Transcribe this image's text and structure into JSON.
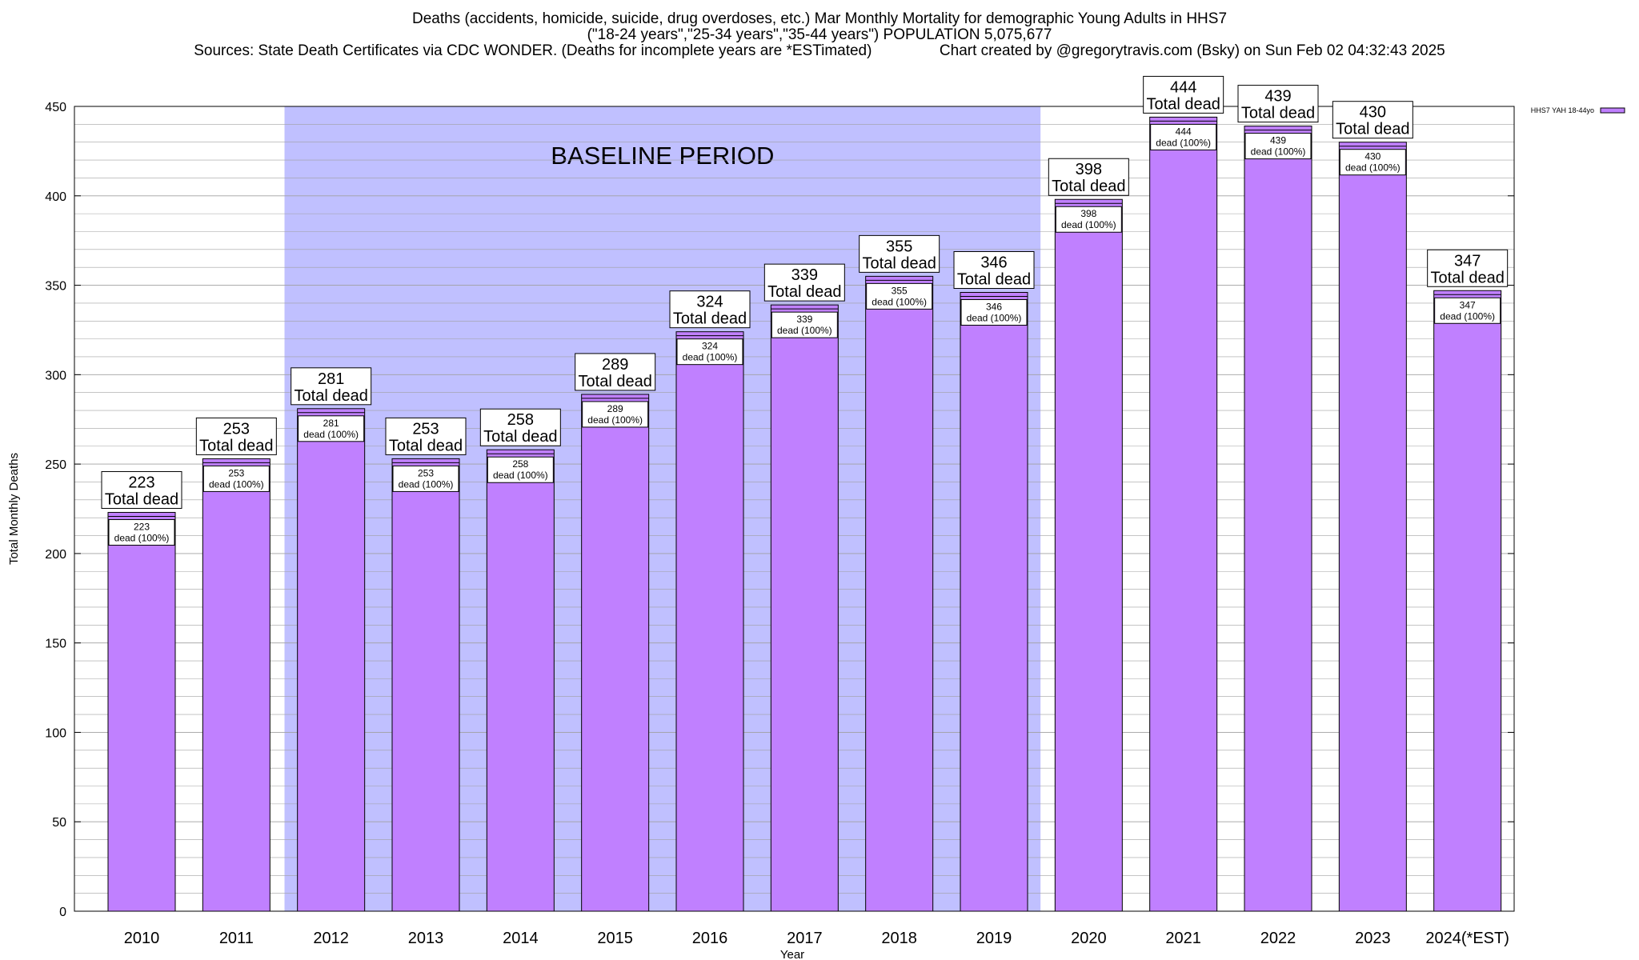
{
  "chart_data": {
    "type": "bar",
    "title_lines": [
      "Deaths (accidents, homicide, suicide, drug overdoses, etc.) Mar Monthly Mortality for demographic Young Adults in HHS7",
      "(\"18-24 years\",\"25-34 years\",\"35-44 years\") POPULATION 5,075,677",
      "Sources: State Death Certificates via CDC WONDER. (Deaths for incomplete years are *ESTimated)                Chart created by @gregorytravis.com (Bsky) on Sun Feb 02 04:32:43 2025"
    ],
    "xlabel": "Year",
    "ylabel": "Total Monthly Deaths",
    "ylim": [
      0,
      450
    ],
    "y_ticks": [
      0,
      50,
      100,
      150,
      200,
      250,
      300,
      350,
      400,
      450
    ],
    "grid": true,
    "legend": {
      "position": "top-right",
      "label": "HHS7 YAH 18-44yo"
    },
    "categories": [
      "2010",
      "2011",
      "2012",
      "2013",
      "2014",
      "2015",
      "2016",
      "2017",
      "2018",
      "2019",
      "2020",
      "2021",
      "2022",
      "2023",
      "2024(*EST)"
    ],
    "series": [
      {
        "name": "HHS7 YAH 18-44yo",
        "values": [
          223,
          253,
          281,
          253,
          258,
          289,
          324,
          339,
          355,
          346,
          398,
          444,
          439,
          430,
          347
        ]
      }
    ],
    "total_label_suffix": "Total dead",
    "inner_label_suffix": "dead (100%)",
    "baseline": {
      "label": "BASELINE PERIOD",
      "start_category": "2012",
      "end_category": "2019"
    },
    "colors": {
      "bar": "#c080ff",
      "baseline_shade": "#c0c0ff",
      "grid": "#a0a0a0"
    }
  }
}
